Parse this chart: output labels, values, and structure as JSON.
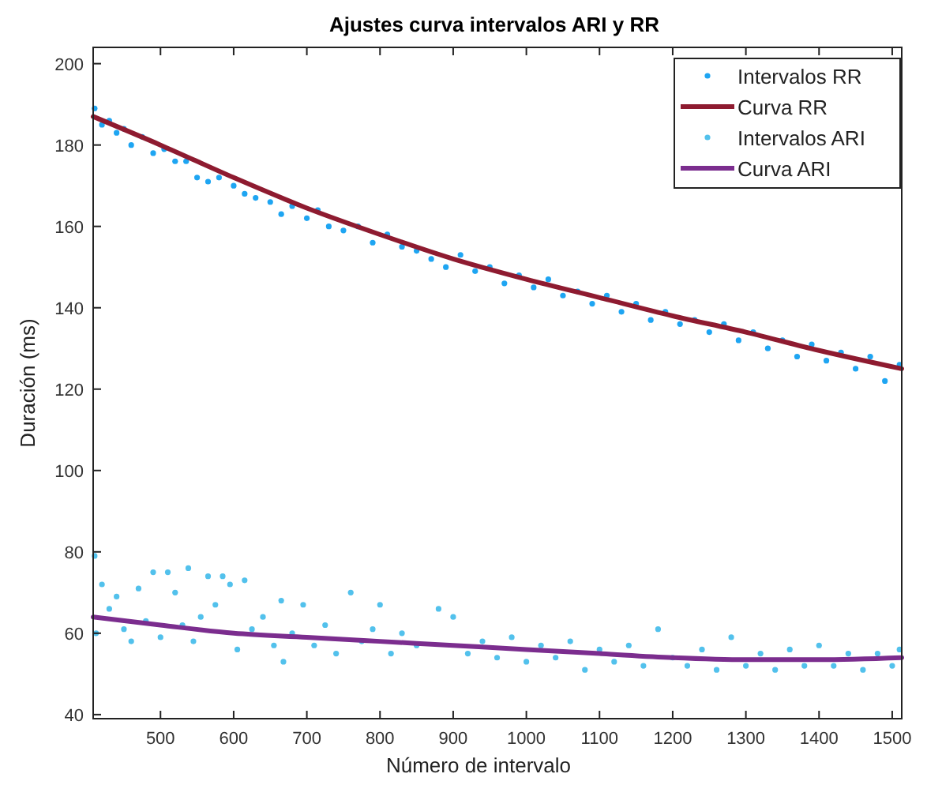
{
  "chart_data": {
    "type": "scatter",
    "title": "Ajustes curva intervalos ARI y RR",
    "xlabel": "Número de intervalo",
    "ylabel": "Duración (ms)",
    "xlim": [
      408,
      1513
    ],
    "ylim": [
      39,
      204
    ],
    "xticks": [
      500,
      600,
      700,
      800,
      900,
      1000,
      1100,
      1200,
      1300,
      1400,
      1500
    ],
    "yticks": [
      40,
      60,
      80,
      100,
      120,
      140,
      160,
      180,
      200
    ],
    "grid": false,
    "legend": "top right",
    "series": [
      {
        "name": "Intervalos RR",
        "marker": "circle",
        "color": "#1ea5f2",
        "x": [
          410,
          420,
          430,
          440,
          450,
          460,
          475,
          490,
          505,
          520,
          535,
          550,
          565,
          580,
          600,
          615,
          630,
          650,
          665,
          680,
          700,
          715,
          730,
          750,
          770,
          790,
          810,
          830,
          850,
          870,
          890,
          910,
          930,
          950,
          970,
          990,
          1010,
          1030,
          1050,
          1070,
          1090,
          1110,
          1130,
          1150,
          1170,
          1190,
          1210,
          1230,
          1250,
          1270,
          1290,
          1310,
          1330,
          1350,
          1370,
          1390,
          1410,
          1430,
          1450,
          1470,
          1490,
          1510
        ],
        "values": [
          189,
          185,
          186,
          183,
          184,
          180,
          182,
          178,
          179,
          176,
          176,
          172,
          171,
          172,
          170,
          168,
          167,
          166,
          163,
          165,
          162,
          164,
          160,
          159,
          160,
          156,
          158,
          155,
          154,
          152,
          150,
          153,
          149,
          150,
          146,
          148,
          145,
          147,
          143,
          144,
          141,
          143,
          139,
          141,
          137,
          139,
          136,
          137,
          134,
          136,
          132,
          134,
          130,
          132,
          128,
          131,
          127,
          129,
          125,
          128,
          122,
          126
        ]
      },
      {
        "name": "Curva RR",
        "type": "line",
        "color": "#8e1b30",
        "line_style": "solid",
        "x": [
          408,
          500,
          600,
          700,
          800,
          900,
          1000,
          1100,
          1200,
          1300,
          1400,
          1513
        ],
        "values": [
          187,
          180,
          172,
          164.5,
          158,
          152,
          147,
          142.5,
          138,
          134,
          129.5,
          125
        ]
      },
      {
        "name": "Intervalos ARI",
        "marker": "circle",
        "color": "#52c1ec",
        "x": [
          410,
          412,
          420,
          430,
          440,
          450,
          460,
          470,
          480,
          490,
          500,
          510,
          520,
          530,
          538,
          545,
          555,
          565,
          575,
          585,
          595,
          605,
          615,
          625,
          640,
          655,
          665,
          668,
          680,
          695,
          710,
          725,
          740,
          760,
          775,
          790,
          800,
          815,
          830,
          850,
          880,
          900,
          920,
          940,
          960,
          980,
          1000,
          1020,
          1040,
          1060,
          1080,
          1100,
          1120,
          1140,
          1160,
          1180,
          1200,
          1220,
          1240,
          1260,
          1280,
          1300,
          1320,
          1340,
          1360,
          1380,
          1400,
          1420,
          1440,
          1460,
          1480,
          1500,
          1510
        ],
        "values": [
          79,
          60,
          72,
          66,
          69,
          61,
          58,
          71,
          63,
          75,
          59,
          75,
          70,
          62,
          76,
          58,
          64,
          74,
          67,
          74,
          72,
          56,
          73,
          61,
          64,
          57,
          68,
          53,
          60,
          67,
          57,
          62,
          55,
          70,
          58,
          61,
          67,
          55,
          60,
          57,
          66,
          64,
          55,
          58,
          54,
          59,
          53,
          57,
          54,
          58,
          51,
          56,
          53,
          57,
          52,
          61,
          54,
          52,
          56,
          51,
          59,
          52,
          55,
          51,
          56,
          52,
          57,
          52,
          55,
          51,
          55,
          52,
          56
        ]
      },
      {
        "name": "Curva ARI",
        "type": "line",
        "color": "#7b2d8e",
        "line_style": "solid",
        "x": [
          408,
          500,
          600,
          700,
          800,
          900,
          1000,
          1100,
          1200,
          1300,
          1400,
          1513
        ],
        "values": [
          64,
          62,
          60,
          59,
          58,
          57,
          56,
          55,
          54,
          53.5,
          53.5,
          54
        ]
      }
    ]
  }
}
